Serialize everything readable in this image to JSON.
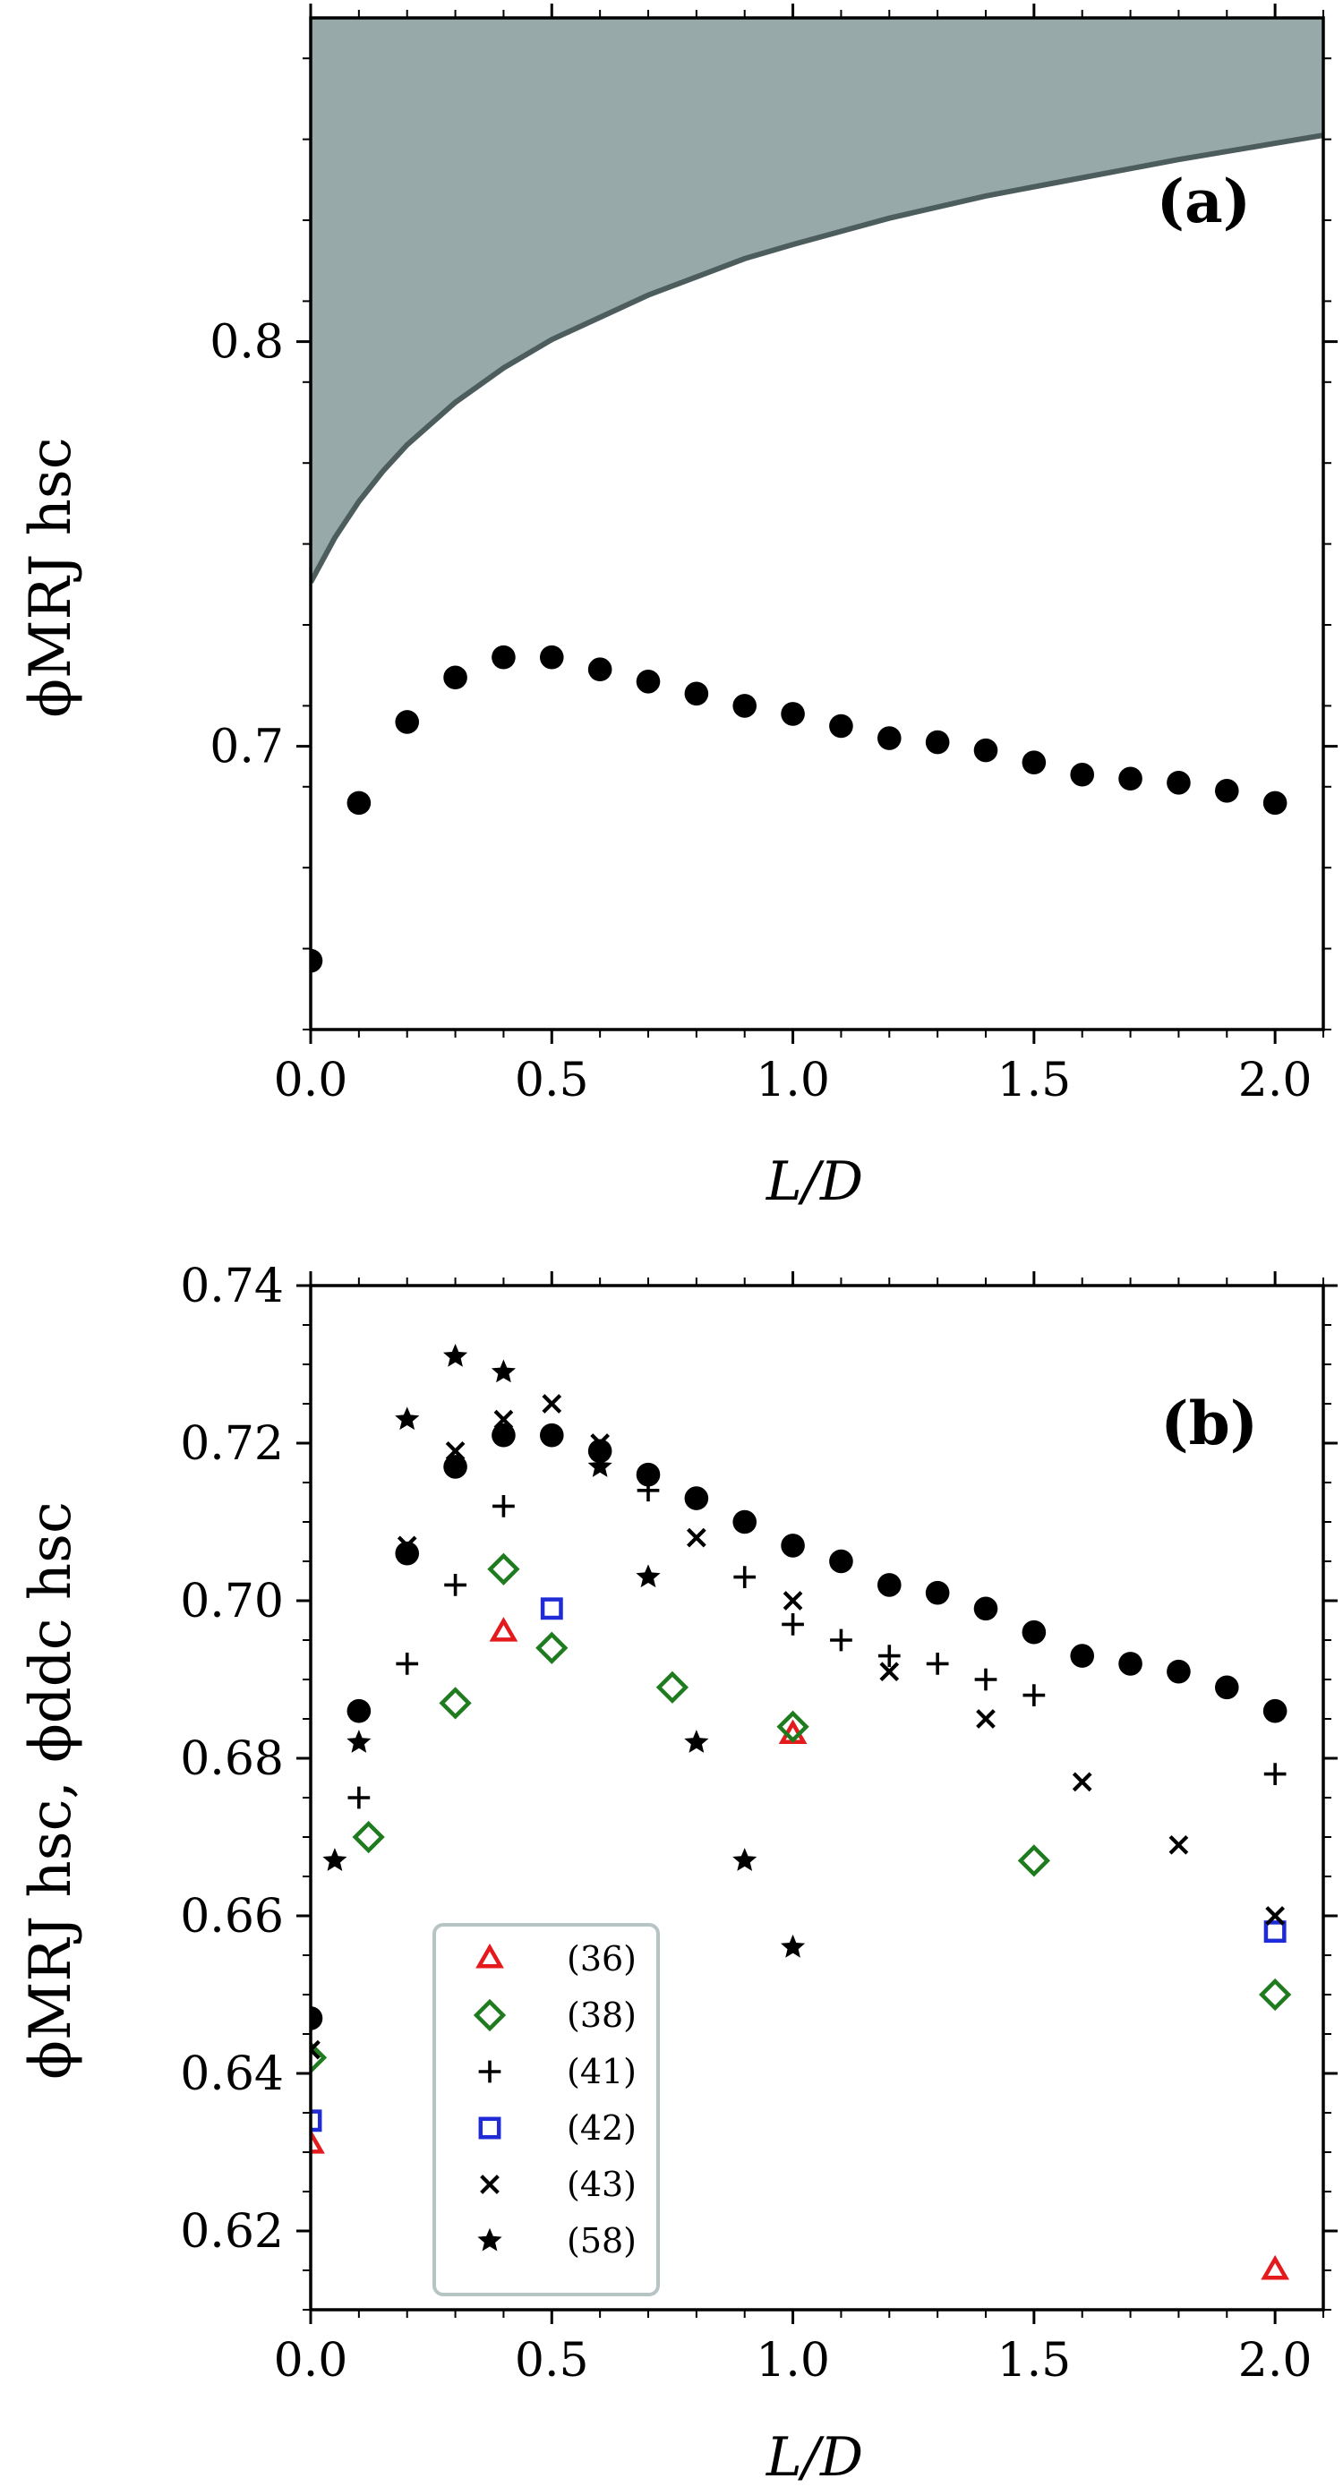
{
  "chart_data": [
    {
      "panel": "(a)",
      "type": "scatter",
      "xlabel": "L/D",
      "ylabel": "ϕMRJ hsc",
      "xlim": [
        0.0,
        2.1
      ],
      "ylim": [
        0.63,
        0.88
      ],
      "xticks": [
        "0.0",
        "0.5",
        "1.0",
        "1.5",
        "2.0"
      ],
      "yticks": [
        "0.7",
        "0.8"
      ],
      "shaded_region": {
        "description": "upper bound (densest packing)",
        "color": "#97a9a9",
        "edge_color": "#4d5d5d",
        "x": [
          0.0,
          0.05,
          0.1,
          0.15,
          0.2,
          0.3,
          0.4,
          0.5,
          0.6,
          0.7,
          0.8,
          0.9,
          1.0,
          1.2,
          1.4,
          1.6,
          1.8,
          2.0,
          2.1
        ],
        "y": [
          0.7405,
          0.7515,
          0.7605,
          0.768,
          0.7745,
          0.785,
          0.7935,
          0.8005,
          0.806,
          0.8115,
          0.816,
          0.8205,
          0.824,
          0.8305,
          0.836,
          0.8405,
          0.845,
          0.849,
          0.851
        ]
      },
      "series": [
        {
          "name": "MRJ hsc",
          "marker": "filled-circle",
          "color": "#000000",
          "x": [
            0.0,
            0.1,
            0.2,
            0.3,
            0.4,
            0.5,
            0.6,
            0.7,
            0.8,
            0.9,
            1.0,
            1.1,
            1.2,
            1.3,
            1.4,
            1.5,
            1.6,
            1.7,
            1.8,
            1.9,
            2.0
          ],
          "y": [
            0.647,
            0.686,
            0.706,
            0.717,
            0.722,
            0.722,
            0.719,
            0.716,
            0.713,
            0.71,
            0.708,
            0.705,
            0.702,
            0.701,
            0.699,
            0.696,
            0.693,
            0.692,
            0.691,
            0.689,
            0.686
          ]
        }
      ]
    },
    {
      "panel": "(b)",
      "type": "scatter",
      "xlabel": "L/D",
      "ylabel": "ϕMRJ hsc, ϕddc hsc",
      "xlim": [
        0.0,
        2.1
      ],
      "ylim": [
        0.61,
        0.74
      ],
      "xticks": [
        "0.0",
        "0.5",
        "1.0",
        "1.5",
        "2.0"
      ],
      "yticks": [
        "0.62",
        "0.64",
        "0.66",
        "0.68",
        "0.70",
        "0.72",
        "0.74"
      ],
      "legend_position": "lower-left",
      "series": [
        {
          "name": "MRJ hsc",
          "in_legend": false,
          "marker": "filled-circle",
          "color": "#000000",
          "x": [
            0.0,
            0.1,
            0.2,
            0.3,
            0.4,
            0.5,
            0.6,
            0.7,
            0.8,
            0.9,
            1.0,
            1.1,
            1.2,
            1.3,
            1.4,
            1.5,
            1.6,
            1.7,
            1.8,
            1.9,
            2.0
          ],
          "y": [
            0.647,
            0.686,
            0.706,
            0.717,
            0.721,
            0.721,
            0.719,
            0.716,
            0.713,
            0.71,
            0.707,
            0.705,
            0.702,
            0.701,
            0.699,
            0.696,
            0.693,
            0.692,
            0.691,
            0.689,
            0.686
          ]
        },
        {
          "name": "(36)",
          "marker": "triangle",
          "color": "#e41a1c",
          "x": [
            0.0,
            0.4,
            1.0,
            2.0
          ],
          "y": [
            0.631,
            0.696,
            0.683,
            0.615
          ]
        },
        {
          "name": "(38)",
          "marker": "diamond",
          "color": "#1e7b1e",
          "x": [
            0.0,
            0.12,
            0.3,
            0.4,
            0.5,
            0.75,
            1.0,
            1.5,
            2.0
          ],
          "y": [
            0.642,
            0.67,
            0.687,
            0.704,
            0.694,
            0.689,
            0.684,
            0.667,
            0.65
          ]
        },
        {
          "name": "(41)",
          "marker": "plus",
          "color": "#000000",
          "x": [
            0.1,
            0.2,
            0.3,
            0.4,
            0.7,
            0.9,
            1.0,
            1.1,
            1.2,
            1.3,
            1.4,
            1.5,
            2.0
          ],
          "y": [
            0.675,
            0.692,
            0.702,
            0.712,
            0.714,
            0.703,
            0.697,
            0.695,
            0.693,
            0.692,
            0.69,
            0.688,
            0.678
          ]
        },
        {
          "name": "(42)",
          "marker": "square",
          "color": "#1f2bd6",
          "x": [
            0.0,
            0.5,
            2.0
          ],
          "y": [
            0.634,
            0.699,
            0.658
          ]
        },
        {
          "name": "(43)",
          "marker": "cross",
          "color": "#000000",
          "x": [
            0.0,
            0.2,
            0.3,
            0.4,
            0.5,
            0.6,
            0.8,
            1.0,
            1.2,
            1.4,
            1.6,
            1.8,
            2.0
          ],
          "y": [
            0.643,
            0.707,
            0.719,
            0.723,
            0.725,
            0.72,
            0.708,
            0.7,
            0.691,
            0.685,
            0.677,
            0.669,
            0.66
          ]
        },
        {
          "name": "(58)",
          "marker": "star",
          "color": "#000000",
          "x": [
            0.05,
            0.1,
            0.2,
            0.3,
            0.4,
            0.6,
            0.7,
            0.8,
            0.9,
            1.0
          ],
          "y": [
            0.667,
            0.682,
            0.723,
            0.731,
            0.729,
            0.717,
            0.703,
            0.682,
            0.667,
            0.656
          ]
        }
      ]
    }
  ]
}
